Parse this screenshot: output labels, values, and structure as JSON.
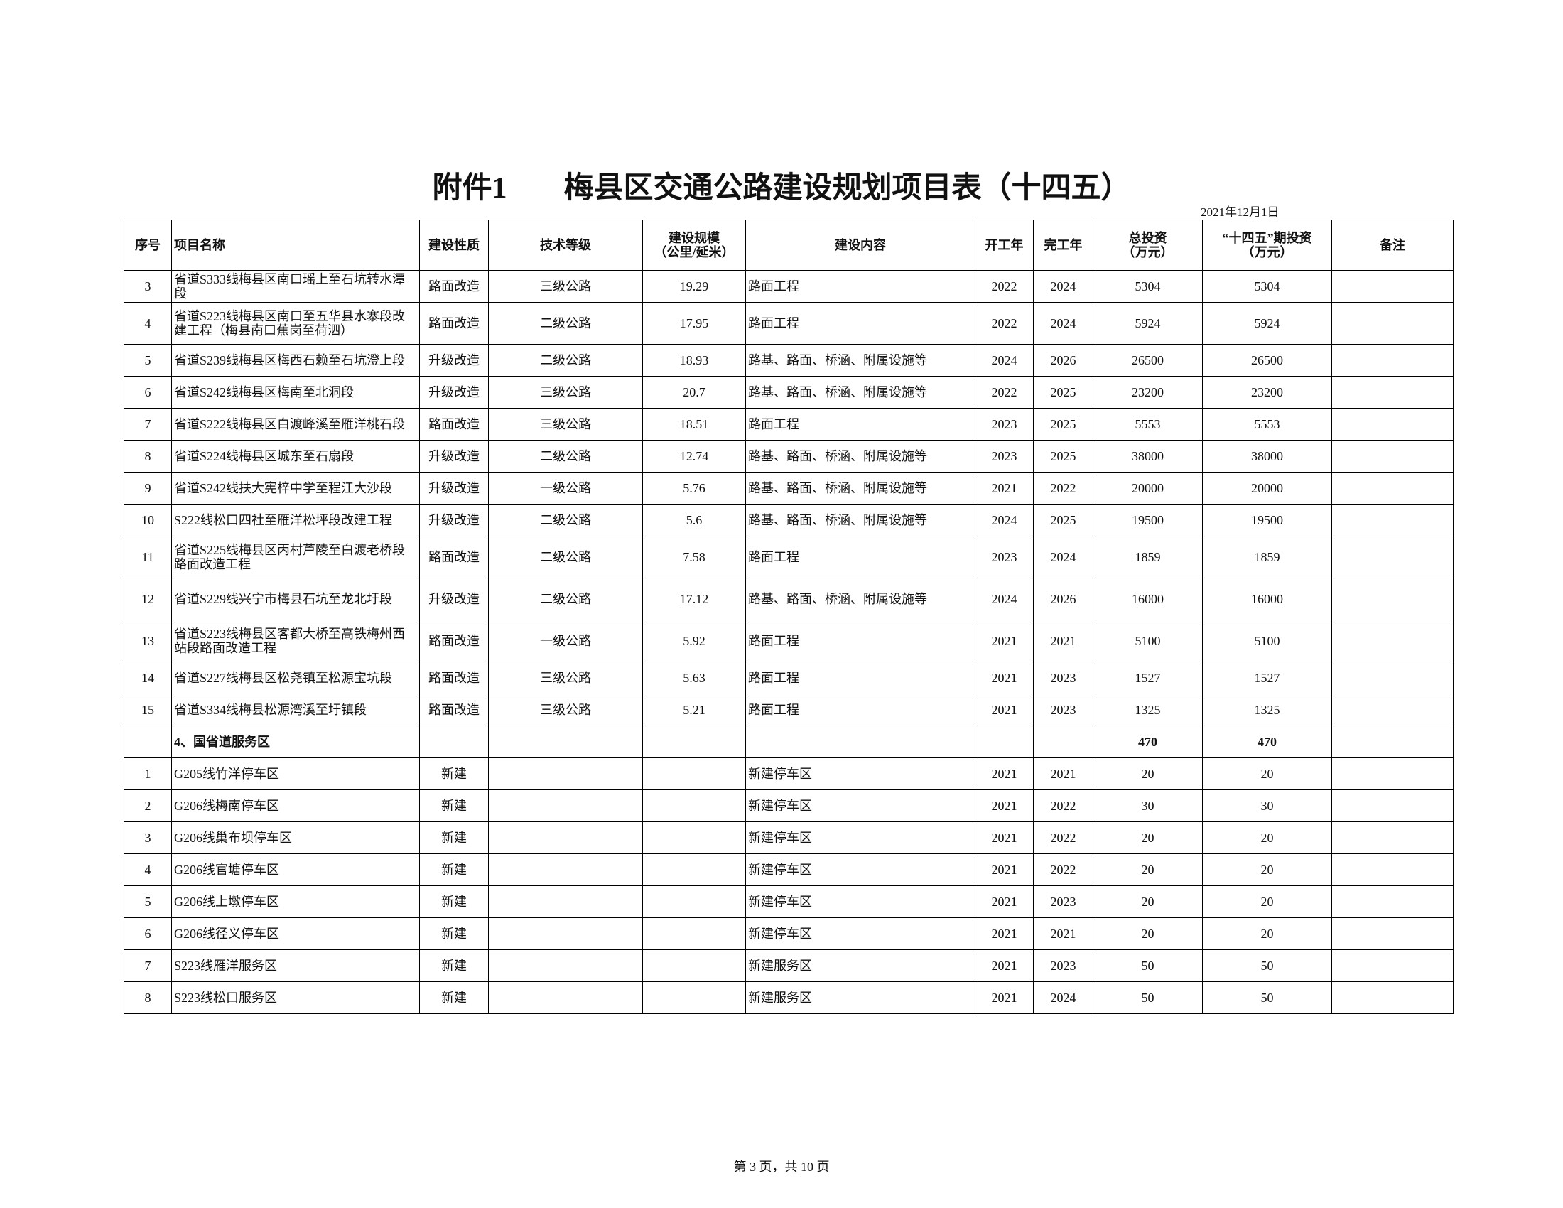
{
  "header": {
    "title_prefix": "附件1",
    "title": "梅县区交通公路建设规划项目表（十四五）",
    "date": "2021年12月1日"
  },
  "table": {
    "columns": [
      "序号",
      "项目名称",
      "建设性质",
      "技术等级",
      "建设规模\n（公里/延米）",
      "建设内容",
      "开工年",
      "完工年",
      "总投资\n（万元）",
      "“十四五”期投资\n（万元）",
      "备注"
    ],
    "rows": [
      {
        "no": 3,
        "name": "省道S333线梅县区南口瑶上至石坑转水潭段",
        "nature": "路面改造",
        "grade": "三级公路",
        "scale": "19.29",
        "content": "路面工程",
        "start": 2022,
        "end": 2024,
        "total": 5304,
        "period": 5304
      },
      {
        "no": 4,
        "name": "省道S223线梅县区南口至五华县水寨段改建工程（梅县南口蕉岗至荷泗）",
        "nature": "路面改造",
        "grade": "二级公路",
        "scale": "17.95",
        "content": "路面工程",
        "start": 2022,
        "end": 2024,
        "total": 5924,
        "period": 5924
      },
      {
        "no": 5,
        "name": "省道S239线梅县区梅西石赖至石坑澄上段",
        "nature": "升级改造",
        "grade": "二级公路",
        "scale": "18.93",
        "content": "路基、路面、桥涵、附属设施等",
        "start": 2024,
        "end": 2026,
        "total": 26500,
        "period": 26500
      },
      {
        "no": 6,
        "name": "省道S242线梅县区梅南至北洞段",
        "nature": "升级改造",
        "grade": "三级公路",
        "scale": "20.7",
        "content": "路基、路面、桥涵、附属设施等",
        "start": 2022,
        "end": 2025,
        "total": 23200,
        "period": 23200
      },
      {
        "no": 7,
        "name": "省道S222线梅县区白渡峰溪至雁洋桃石段",
        "nature": "路面改造",
        "grade": "三级公路",
        "scale": "18.51",
        "content": "路面工程",
        "start": 2023,
        "end": 2025,
        "total": 5553,
        "period": 5553
      },
      {
        "no": 8,
        "name": "省道S224线梅县区城东至石扇段",
        "nature": "升级改造",
        "grade": "二级公路",
        "scale": "12.74",
        "content": "路基、路面、桥涵、附属设施等",
        "start": 2023,
        "end": 2025,
        "total": 38000,
        "period": 38000
      },
      {
        "no": 9,
        "name": "省道S242线扶大宪梓中学至程江大沙段",
        "nature": "升级改造",
        "grade": "一级公路",
        "scale": "5.76",
        "content": "路基、路面、桥涵、附属设施等",
        "start": 2021,
        "end": 2022,
        "total": 20000,
        "period": 20000
      },
      {
        "no": 10,
        "name": "S222线松口四社至雁洋松坪段改建工程",
        "nature": "升级改造",
        "grade": "二级公路",
        "scale": "5.6",
        "content": "路基、路面、桥涵、附属设施等",
        "start": 2024,
        "end": 2025,
        "total": 19500,
        "period": 19500
      },
      {
        "no": 11,
        "name": "省道S225线梅县区丙村芦陵至白渡老桥段路面改造工程",
        "nature": "路面改造",
        "grade": "二级公路",
        "scale": "7.58",
        "content": "路面工程",
        "start": 2023,
        "end": 2024,
        "total": 1859,
        "period": 1859
      },
      {
        "no": 12,
        "name": "省道S229线兴宁市梅县石坑至龙北圩段",
        "nature": "升级改造",
        "grade": "二级公路",
        "scale": "17.12",
        "content": "路基、路面、桥涵、附属设施等",
        "start": 2024,
        "end": 2026,
        "total": 16000,
        "period": 16000
      },
      {
        "no": 13,
        "name": "省道S223线梅县区客都大桥至高铁梅州西站段路面改造工程",
        "nature": "路面改造",
        "grade": "一级公路",
        "scale": "5.92",
        "content": "路面工程",
        "start": 2021,
        "end": 2021,
        "total": 5100,
        "period": 5100
      },
      {
        "no": 14,
        "name": "省道S227线梅县区松尧镇至松源宝坑段",
        "nature": "路面改造",
        "grade": "三级公路",
        "scale": "5.63",
        "content": "路面工程",
        "start": 2021,
        "end": 2023,
        "total": 1527,
        "period": 1527
      },
      {
        "no": 15,
        "name": "省道S334线梅县松源湾溪至圩镇段",
        "nature": "路面改造",
        "grade": "三级公路",
        "scale": "5.21",
        "content": "路面工程",
        "start": 2021,
        "end": 2023,
        "total": 1325,
        "period": 1325
      },
      {
        "name": "4、国省道服务区",
        "total": 470,
        "period": 470
      },
      {
        "no": 1,
        "name": "G205线竹洋停车区",
        "nature": "新建",
        "content": "新建停车区",
        "start": 2021,
        "end": 2021,
        "total": 20,
        "period": 20
      },
      {
        "no": 2,
        "name": "G206线梅南停车区",
        "nature": "新建",
        "content": "新建停车区",
        "start": 2021,
        "end": 2022,
        "total": 30,
        "period": 30
      },
      {
        "no": 3,
        "name": "G206线巢布坝停车区",
        "nature": "新建",
        "content": "新建停车区",
        "start": 2021,
        "end": 2022,
        "total": 20,
        "period": 20
      },
      {
        "no": 4,
        "name": "G206线官塘停车区",
        "nature": "新建",
        "content": "新建停车区",
        "start": 2021,
        "end": 2022,
        "total": 20,
        "period": 20
      },
      {
        "no": 5,
        "name": "G206线上墩停车区",
        "nature": "新建",
        "content": "新建停车区",
        "start": 2021,
        "end": 2023,
        "total": 20,
        "period": 20
      },
      {
        "no": 6,
        "name": "G206线径义停车区",
        "nature": "新建",
        "content": "新建停车区",
        "start": 2021,
        "end": 2021,
        "total": 20,
        "period": 20
      },
      {
        "no": 7,
        "name": "S223线雁洋服务区",
        "nature": "新建",
        "content": "新建服务区",
        "start": 2021,
        "end": 2023,
        "total": 50,
        "period": 50
      },
      {
        "no": 8,
        "name": "S223线松口服务区",
        "nature": "新建",
        "content": "新建服务区",
        "start": 2021,
        "end": 2024,
        "total": 50,
        "period": 50
      }
    ]
  },
  "footer": {
    "page": "第 3 页，共 10 页"
  }
}
